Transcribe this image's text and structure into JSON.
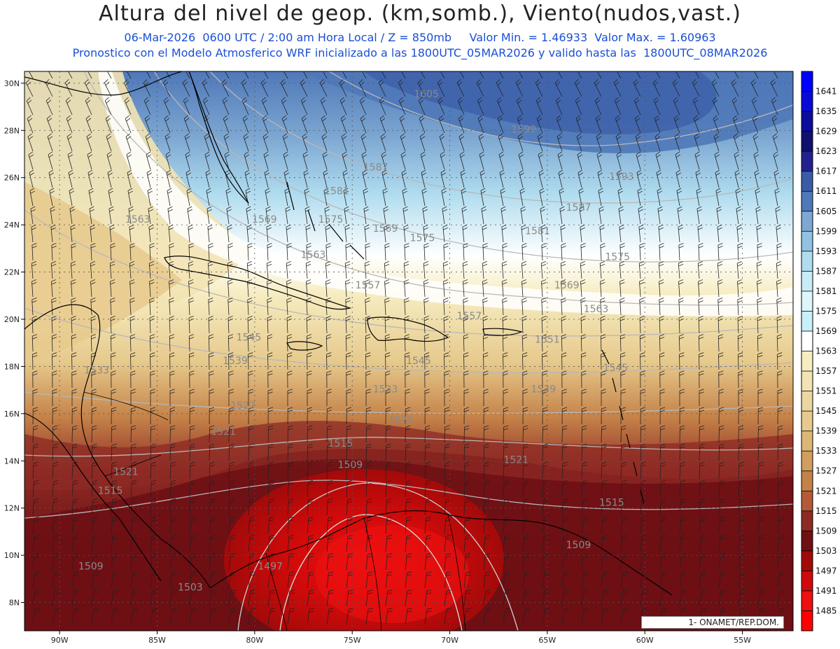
{
  "header": {
    "title": "Altura del nivel de geop. (km,somb.), Viento(nudos,vast.)",
    "subtitle_line1": "06-Mar-2026  0600 UTC / 2:00 am Hora Local / Z = 850mb     Valor Min. = 1.46933  Valor Max. = 1.60963",
    "subtitle_line2": "Pronostico con el Modelo Atmosferico WRF inicializado a las 1800UTC_05MAR2026 y valido hasta las  1800UTC_08MAR2026"
  },
  "map": {
    "lat_ticks": [
      "30N",
      "28N",
      "26N",
      "24N",
      "22N",
      "20N",
      "18N",
      "16N",
      "14N",
      "12N",
      "10N",
      "8N"
    ],
    "lon_ticks": [
      "90W",
      "85W",
      "80W",
      "75W",
      "70W",
      "65W",
      "60W",
      "55W"
    ],
    "contour_labels": [
      {
        "text": "1605",
        "lon": -71.2,
        "lat": 29.4
      },
      {
        "text": "1599",
        "lon": -66.2,
        "lat": 27.9
      },
      {
        "text": "1593",
        "lon": -61.2,
        "lat": 25.9
      },
      {
        "text": "1587",
        "lon": -73.8,
        "lat": 26.3
      },
      {
        "text": "1581",
        "lon": -75.8,
        "lat": 25.3
      },
      {
        "text": "1587",
        "lon": -63.4,
        "lat": 24.6
      },
      {
        "text": "1581",
        "lon": -65.5,
        "lat": 23.6
      },
      {
        "text": "1575",
        "lon": -76.1,
        "lat": 24.1
      },
      {
        "text": "1575",
        "lon": -71.4,
        "lat": 23.3
      },
      {
        "text": "1575",
        "lon": -61.4,
        "lat": 22.5
      },
      {
        "text": "1569",
        "lon": -79.5,
        "lat": 24.1
      },
      {
        "text": "1569",
        "lon": -73.3,
        "lat": 23.7
      },
      {
        "text": "1569",
        "lon": -64.0,
        "lat": 21.3
      },
      {
        "text": "1563",
        "lon": -86.0,
        "lat": 24.1
      },
      {
        "text": "1563",
        "lon": -77.0,
        "lat": 22.6
      },
      {
        "text": "1563",
        "lon": -62.5,
        "lat": 20.3
      },
      {
        "text": "1557",
        "lon": -74.2,
        "lat": 21.3
      },
      {
        "text": "1557",
        "lon": -69.0,
        "lat": 20.0
      },
      {
        "text": "1551",
        "lon": -65.0,
        "lat": 19.0
      },
      {
        "text": "1545",
        "lon": -80.3,
        "lat": 19.1
      },
      {
        "text": "1545",
        "lon": -71.6,
        "lat": 18.1
      },
      {
        "text": "1545",
        "lon": -61.5,
        "lat": 17.8
      },
      {
        "text": "1539",
        "lon": -81.0,
        "lat": 18.1
      },
      {
        "text": "1539",
        "lon": -65.2,
        "lat": 16.9
      },
      {
        "text": "1533",
        "lon": -88.1,
        "lat": 17.7
      },
      {
        "text": "1533",
        "lon": -73.3,
        "lat": 16.9
      },
      {
        "text": "1527",
        "lon": -80.6,
        "lat": 16.2
      },
      {
        "text": "1521",
        "lon": -81.6,
        "lat": 15.1
      },
      {
        "text": "1521",
        "lon": -72.5,
        "lat": 15.6
      },
      {
        "text": "1521",
        "lon": -66.6,
        "lat": 13.9
      },
      {
        "text": "1521",
        "lon": -86.6,
        "lat": 13.4
      },
      {
        "text": "1515",
        "lon": -75.6,
        "lat": 14.6
      },
      {
        "text": "1515",
        "lon": -87.4,
        "lat": 12.6
      },
      {
        "text": "1515",
        "lon": -61.7,
        "lat": 12.1
      },
      {
        "text": "1509",
        "lon": -75.1,
        "lat": 13.7
      },
      {
        "text": "1509",
        "lon": -63.4,
        "lat": 10.3
      },
      {
        "text": "1509",
        "lon": -88.4,
        "lat": 9.4
      },
      {
        "text": "1503",
        "lon": -83.3,
        "lat": 8.5
      },
      {
        "text": "1497",
        "lon": -79.2,
        "lat": 9.4
      }
    ]
  },
  "legend": {
    "levels": [
      "1641",
      "1635",
      "1629",
      "1623",
      "1617",
      "1611",
      "1605",
      "1599",
      "1593",
      "1587",
      "1581",
      "1575",
      "1569",
      "1563",
      "1557",
      "1551",
      "1545",
      "1539",
      "1533",
      "1527",
      "1521",
      "1515",
      "1509",
      "1503",
      "1497",
      "1491",
      "1485"
    ],
    "colors": [
      "#0000ff",
      "#0a0ad8",
      "#0c0c9e",
      "#101070",
      "#22228e",
      "#3a5ca8",
      "#4f78b8",
      "#7ea8d2",
      "#92c2e2",
      "#b0dcef",
      "#c8ecf6",
      "#dcf6fa",
      "#c8f0f8",
      "#ffffff",
      "#f6ecc0",
      "#f3e3b2",
      "#ecd6a0",
      "#e6c98c",
      "#dcb676",
      "#d19e60",
      "#c48148",
      "#b45a36",
      "#8e2a24",
      "#6e1014",
      "#a20a0a",
      "#cf0a0a",
      "#ee1010",
      "#ff0000"
    ]
  },
  "credit": {
    "text": "1- ONAMET/REP.DOM."
  }
}
